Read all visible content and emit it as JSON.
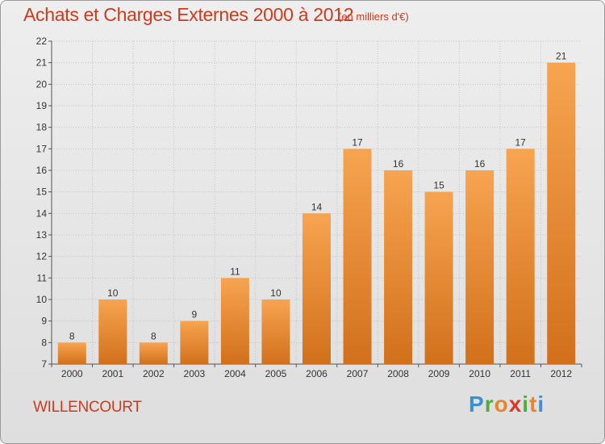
{
  "header": {
    "title": "Achats et Charges Externes 2000 à 2012",
    "subtitle": "(en milliers d'€)"
  },
  "footer": {
    "commune": "WILLENCOURT",
    "brand": "Proxiti"
  },
  "colors": {
    "accent": "#d03a1c",
    "bar_light": "#f7a450",
    "bar_dark": "#d2701c",
    "grid": "#c4c4c4"
  },
  "chart_data": {
    "type": "bar",
    "title": "Achats et Charges Externes 2000 à 2012",
    "subtitle": "(en milliers d'€)",
    "categories": [
      "2000",
      "2001",
      "2002",
      "2003",
      "2004",
      "2005",
      "2006",
      "2007",
      "2008",
      "2009",
      "2010",
      "2011",
      "2012"
    ],
    "values": [
      8,
      10,
      8,
      9,
      11,
      10,
      14,
      17,
      16,
      15,
      16,
      17,
      21
    ],
    "ylim": [
      7,
      22
    ],
    "yticks": [
      7,
      8,
      9,
      10,
      11,
      12,
      13,
      14,
      15,
      16,
      17,
      18,
      19,
      20,
      21,
      22
    ],
    "grid": true,
    "legend": "none"
  }
}
